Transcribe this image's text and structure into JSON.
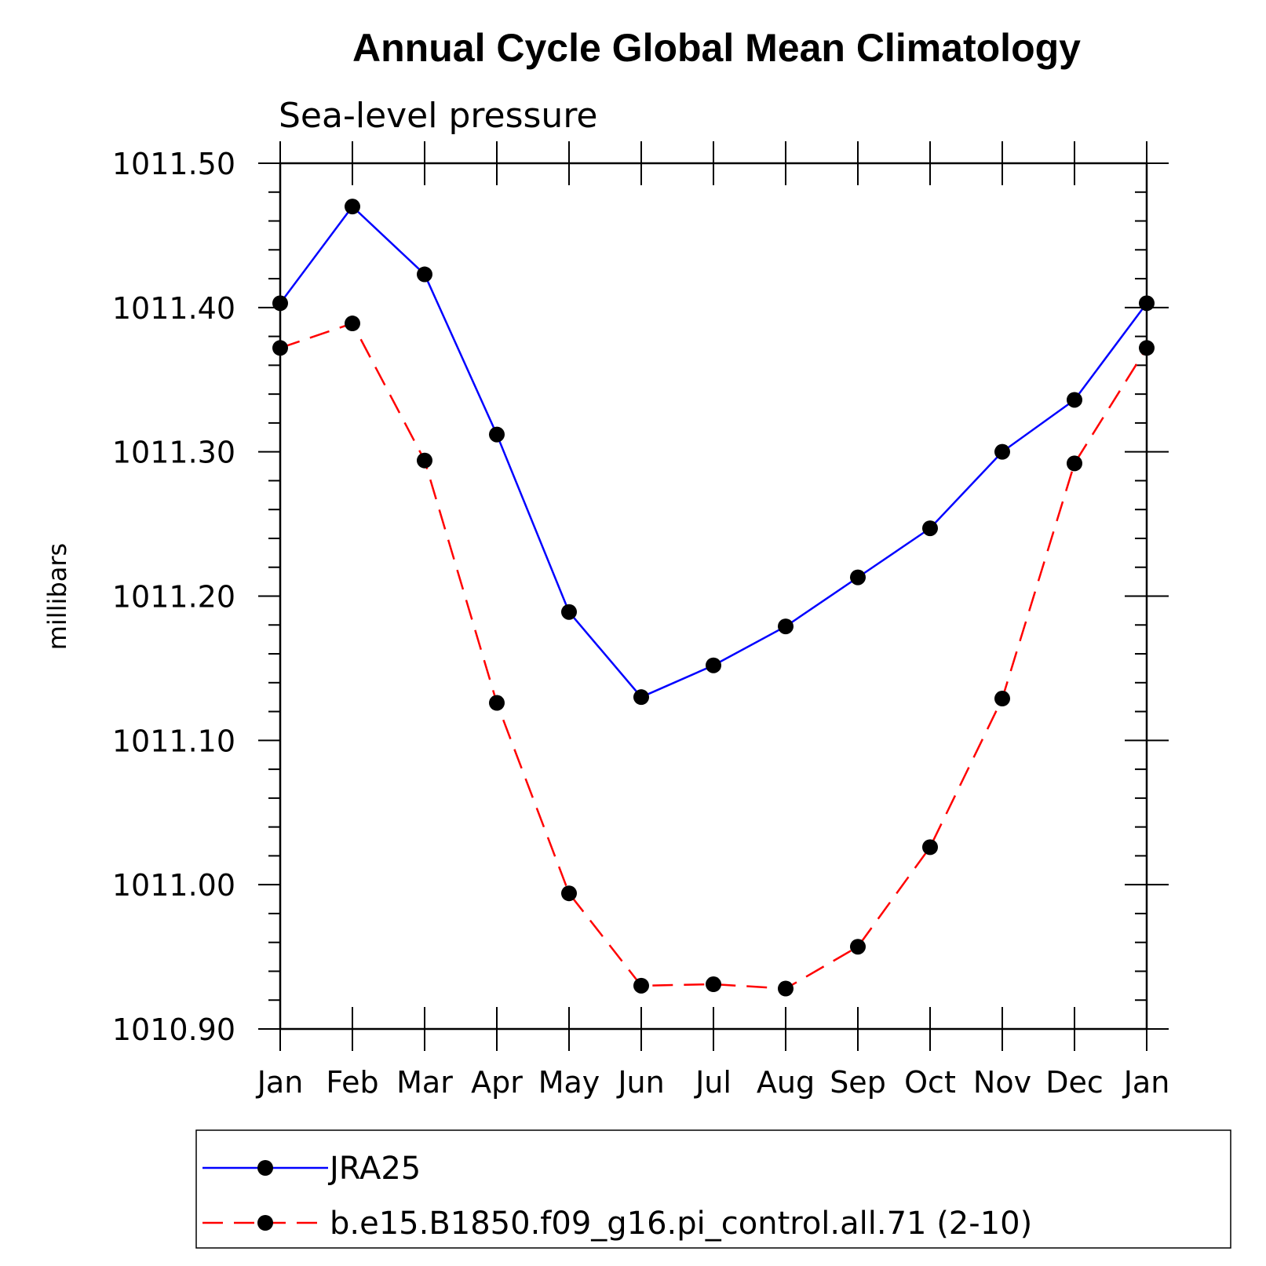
{
  "chart_data": {
    "type": "line",
    "title": "Annual Cycle Global Mean Climatology",
    "subtitle": "Sea-level pressure",
    "xlabel": "",
    "ylabel": "millibars",
    "ylim": [
      1010.9,
      1011.5
    ],
    "yticks": [
      "1011.50",
      "1011.40",
      "1011.30",
      "1011.20",
      "1011.10",
      "1011.00",
      "1010.90"
    ],
    "categories": [
      "Jan",
      "Feb",
      "Mar",
      "Apr",
      "May",
      "Jun",
      "Jul",
      "Aug",
      "Sep",
      "Oct",
      "Nov",
      "Dec",
      "Jan"
    ],
    "grid": false,
    "legend": "bottom",
    "series": [
      {
        "name": "JRA25",
        "color": "#0000ff",
        "dash": "solid",
        "marker": "filled-circle",
        "values": [
          1011.403,
          1011.47,
          1011.423,
          1011.312,
          1011.189,
          1011.13,
          1011.152,
          1011.179,
          1011.213,
          1011.247,
          1011.3,
          1011.336,
          1011.403
        ]
      },
      {
        "name": "b.e15.B1850.f09_g16.pi_control.all.71 (2-10)",
        "color": "#ff0000",
        "dash": "dashed",
        "marker": "filled-circle",
        "values": [
          1011.372,
          1011.389,
          1011.294,
          1011.126,
          1010.994,
          1010.93,
          1010.931,
          1010.928,
          1010.957,
          1011.026,
          1011.129,
          1011.292,
          1011.372
        ]
      }
    ]
  }
}
